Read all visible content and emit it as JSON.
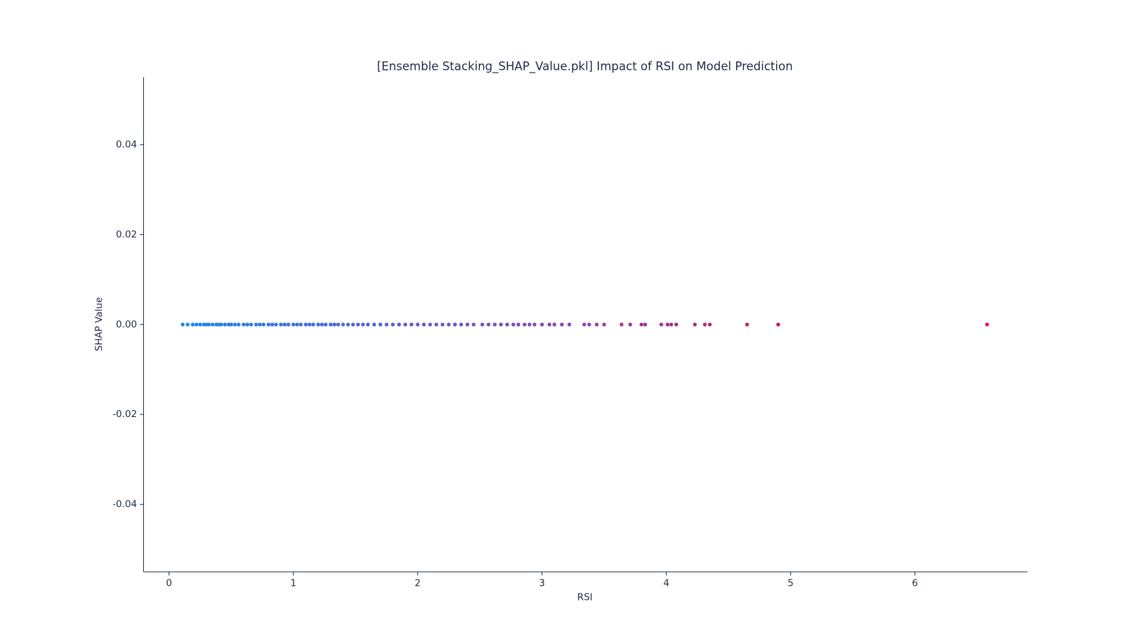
{
  "chart_data": {
    "type": "scatter",
    "title": "[Ensemble Stacking_SHAP_Value.pkl] Impact of RSI on Model Prediction",
    "x_label": "RSI",
    "y_label": "SHAP Value",
    "colorscale": [
      "#1e88e5",
      "#5b5fd0",
      "#8e44a8",
      "#c2185b",
      "#ff0d57"
    ],
    "x": [
      0.11,
      0.15,
      0.19,
      0.22,
      0.25,
      0.28,
      0.3,
      0.32,
      0.35,
      0.38,
      0.4,
      0.42,
      0.45,
      0.48,
      0.5,
      0.53,
      0.56,
      0.6,
      0.63,
      0.66,
      0.7,
      0.73,
      0.76,
      0.8,
      0.83,
      0.86,
      0.9,
      0.93,
      0.96,
      1.0,
      1.03,
      1.06,
      1.1,
      1.13,
      1.16,
      1.2,
      1.23,
      1.26,
      1.3,
      1.33,
      1.36,
      1.4,
      1.44,
      1.48,
      1.52,
      1.56,
      1.6,
      1.65,
      1.7,
      1.75,
      1.8,
      1.85,
      1.9,
      1.95,
      2.0,
      2.05,
      2.1,
      2.15,
      2.2,
      2.25,
      2.3,
      2.35,
      2.4,
      2.45,
      2.52,
      2.57,
      2.62,
      2.67,
      2.72,
      2.77,
      2.81,
      2.86,
      2.9,
      2.94,
      3.0,
      3.06,
      3.1,
      3.16,
      3.22,
      3.34,
      3.38,
      3.44,
      3.5,
      3.64,
      3.71,
      3.8,
      3.83,
      3.96,
      4.01,
      4.04,
      4.08,
      4.23,
      4.31,
      4.35,
      4.65,
      4.9,
      6.58
    ],
    "y": [
      0,
      0,
      0,
      0,
      0,
      0,
      0,
      0,
      0,
      0,
      0,
      0,
      0,
      0,
      0,
      0,
      0,
      0,
      0,
      0,
      0,
      0,
      0,
      0,
      0,
      0,
      0,
      0,
      0,
      0,
      0,
      0,
      0,
      0,
      0,
      0,
      0,
      0,
      0,
      0,
      0,
      0,
      0,
      0,
      0,
      0,
      0,
      0,
      0,
      0,
      0,
      0,
      0,
      0,
      0,
      0,
      0,
      0,
      0,
      0,
      0,
      0,
      0,
      0,
      0,
      0,
      0,
      0,
      0,
      0,
      0,
      0,
      0,
      0,
      0,
      0,
      0,
      0,
      0,
      0,
      0,
      0,
      0,
      0,
      0,
      0,
      0,
      0,
      0,
      0,
      0,
      0,
      0,
      0,
      0,
      0,
      0
    ],
    "xlim": [
      -0.205,
      6.907
    ],
    "ylim": [
      -0.055,
      0.055
    ],
    "xticks": [
      0,
      1,
      2,
      3,
      4,
      5,
      6
    ],
    "yticks": [
      -0.04,
      -0.02,
      {
        "value": 0,
        "label": "0.00"
      },
      0.02,
      0.04
    ]
  }
}
